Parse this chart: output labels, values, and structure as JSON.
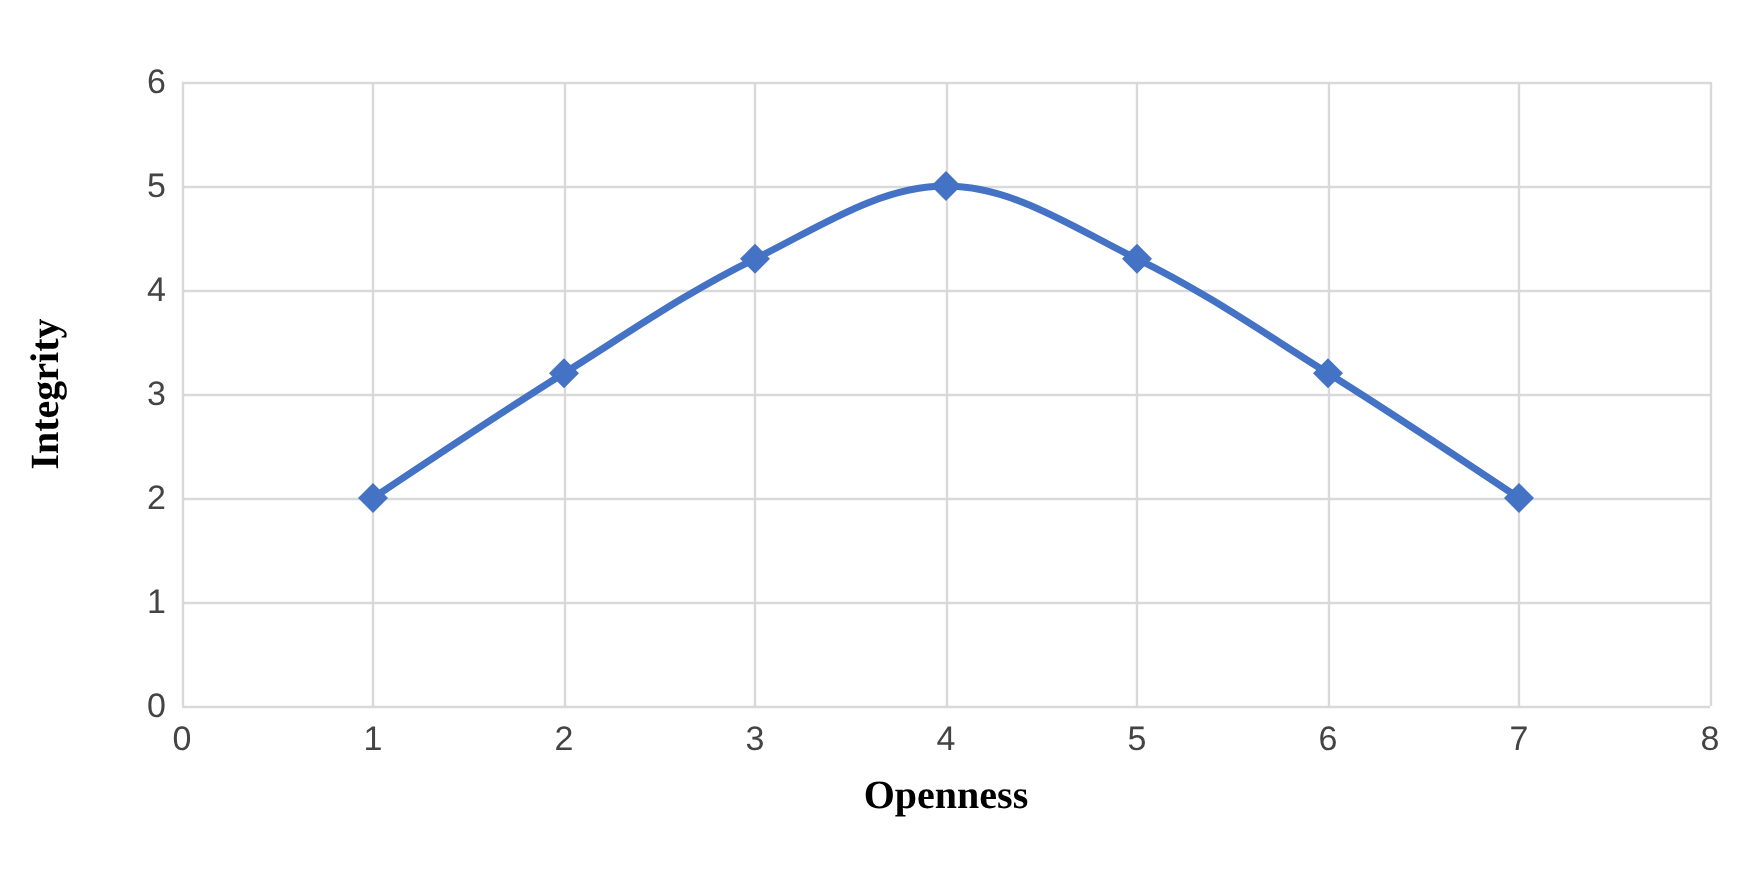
{
  "chart_data": {
    "type": "line",
    "xlabel": "Openness",
    "ylabel": "Integrity",
    "x": [
      1,
      2,
      3,
      4,
      5,
      6,
      7
    ],
    "series": [
      {
        "color": "#4472c4",
        "values": [
          2,
          3.2,
          4.3,
          5,
          4.3,
          3.2,
          2
        ]
      }
    ],
    "xlim": [
      0,
      8
    ],
    "xticks": [
      0,
      1,
      2,
      3,
      4,
      5,
      6,
      7,
      8
    ],
    "ylim": [
      0,
      6
    ],
    "yticks": [
      0,
      1,
      2,
      3,
      4,
      5,
      6
    ],
    "grid": true,
    "marker": "diamond",
    "line_style": "solid"
  }
}
